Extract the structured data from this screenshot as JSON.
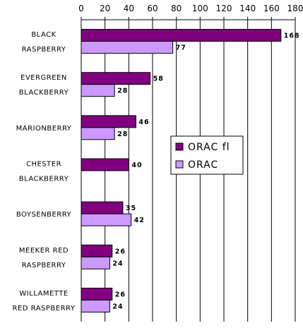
{
  "chart_data": {
    "type": "bar",
    "orientation": "horizontal",
    "categories": [
      [
        "BLACK",
        "RASPBERRY"
      ],
      [
        "EVERGREEN",
        "BLACKBERRY"
      ],
      [
        "MARIONBERRY"
      ],
      [
        "CHESTER",
        "BLACKBERRY"
      ],
      [
        "BOYSENBERRY"
      ],
      [
        "MEEKER RED",
        "RASPBERRY"
      ],
      [
        "WILLAMETTE",
        "RED RASPBERRY"
      ]
    ],
    "series": [
      {
        "name": "ORAC fl",
        "color": "#800080",
        "values": [
          168,
          58,
          46,
          40,
          35,
          26,
          26
        ]
      },
      {
        "name": "ORAC",
        "color": "#cc99ff",
        "values": [
          77,
          28,
          28,
          null,
          42,
          24,
          24
        ]
      }
    ],
    "xlim": [
      0,
      180
    ],
    "xticks": [
      0,
      20,
      40,
      60,
      80,
      100,
      120,
      140,
      160,
      180
    ],
    "grid": true,
    "legend_position": "center-right",
    "title": "",
    "xlabel": "",
    "ylabel": ""
  }
}
